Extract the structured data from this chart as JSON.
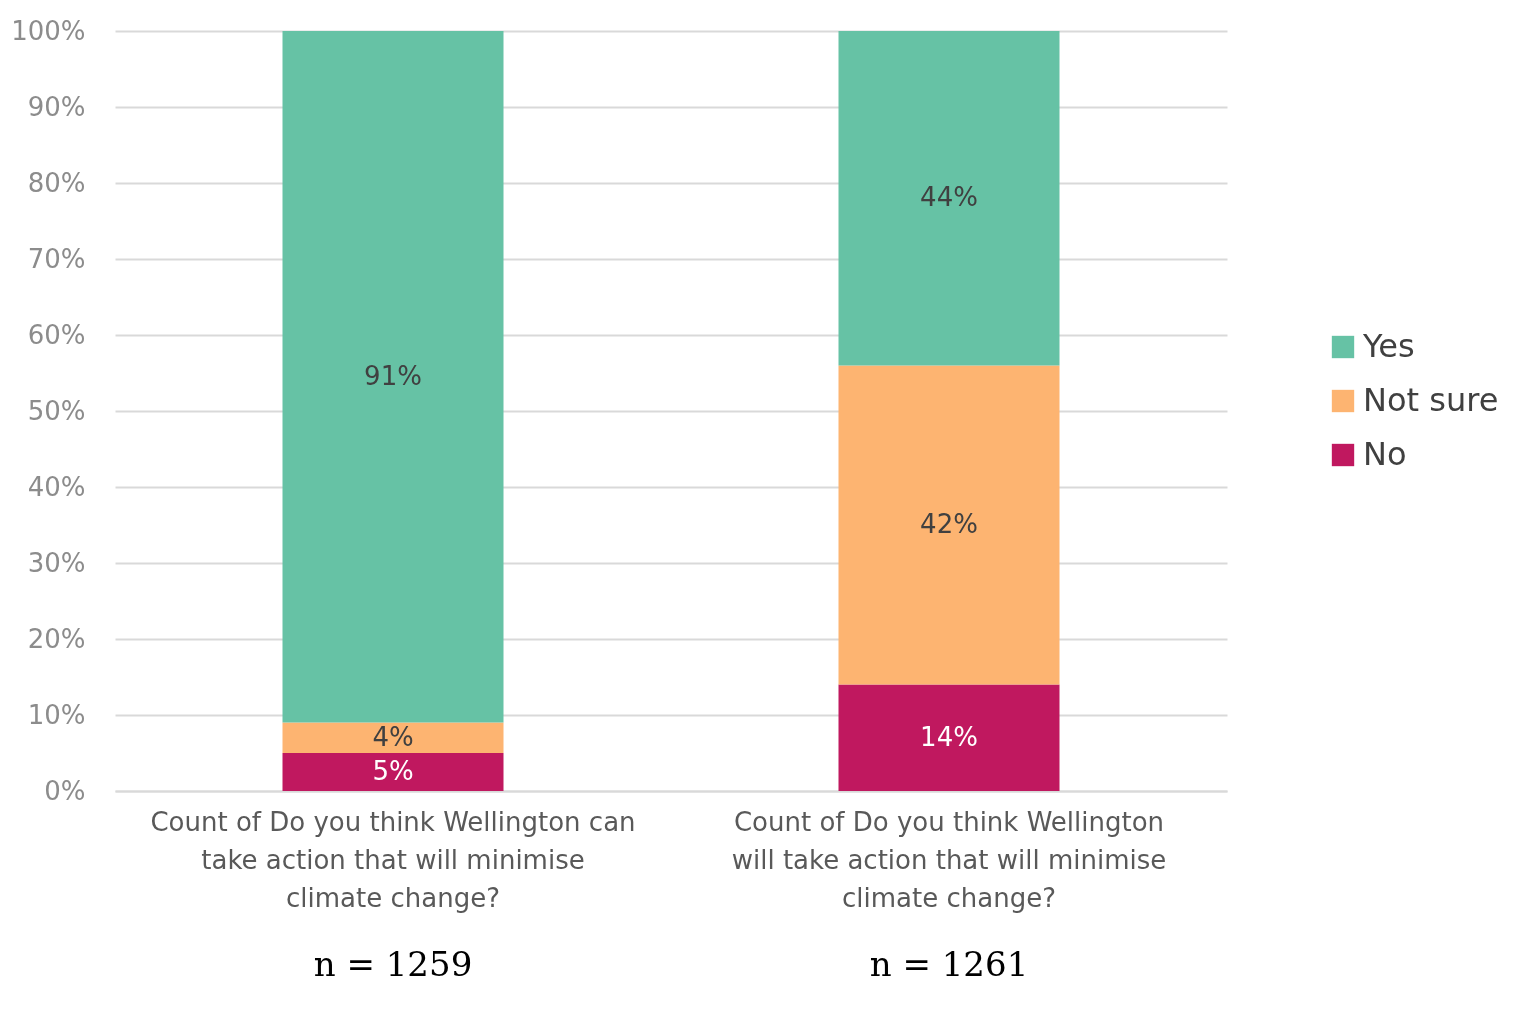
{
  "chart_data": {
    "type": "bar",
    "stacked": true,
    "categories": [
      "Count of Do you think Wellington can take action that will minimise climate change?",
      "Count of Do you think Wellington will take action that will minimise climate change?"
    ],
    "series": [
      {
        "name": "No",
        "color": "#c0185f",
        "values": [
          5,
          14
        ],
        "value_labels": [
          "5%",
          "14%"
        ]
      },
      {
        "name": "Not sure",
        "color": "#fdb471",
        "values": [
          4,
          42
        ],
        "value_labels": [
          "4%",
          "42%"
        ]
      },
      {
        "name": "Yes",
        "color": "#66c2a5",
        "values": [
          91,
          44
        ],
        "value_labels": [
          "91%",
          "44%"
        ]
      }
    ],
    "ylim": [
      0,
      100
    ],
    "yticks": [
      {
        "value": 0,
        "label": "0%"
      },
      {
        "value": 10,
        "label": "10%"
      },
      {
        "value": 20,
        "label": "20%"
      },
      {
        "value": 30,
        "label": "30%"
      },
      {
        "value": 40,
        "label": "40%"
      },
      {
        "value": 50,
        "label": "50%"
      },
      {
        "value": 60,
        "label": "60%"
      },
      {
        "value": 70,
        "label": "70%"
      },
      {
        "value": 80,
        "label": "80%"
      },
      {
        "value": 90,
        "label": "90%"
      },
      {
        "value": 100,
        "label": "100%"
      }
    ],
    "annotations": [
      "n = 1259",
      "n = 1261"
    ],
    "grid": "y",
    "legend": "right"
  }
}
